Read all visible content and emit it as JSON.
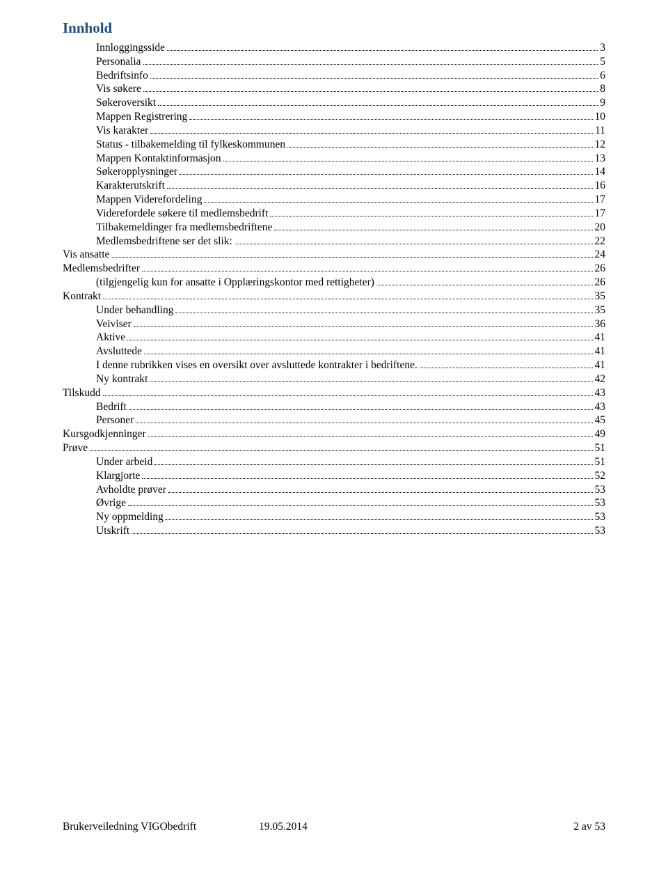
{
  "title": "Innhold",
  "title_color": "#1f4e79",
  "text_color": "#000000",
  "background_color": "#ffffff",
  "font_family": "Times New Roman",
  "toc_entries": [
    {
      "label": "Innloggingsside",
      "page": "3",
      "level": 1
    },
    {
      "label": "Personalia",
      "page": "5",
      "level": 1
    },
    {
      "label": "Bedriftsinfo",
      "page": "6",
      "level": 1
    },
    {
      "label": "Vis søkere",
      "page": "8",
      "level": 1
    },
    {
      "label": "Søkeroversikt",
      "page": "9",
      "level": 1
    },
    {
      "label": "Mappen Registrering",
      "page": "10",
      "level": 1
    },
    {
      "label": "Vis karakter",
      "page": "11",
      "level": 1
    },
    {
      "label": "Status - tilbakemelding til fylkeskommunen",
      "page": "12",
      "level": 1
    },
    {
      "label": "Mappen Kontaktinformasjon",
      "page": "13",
      "level": 1
    },
    {
      "label": "Søkeropplysninger",
      "page": "14",
      "level": 1
    },
    {
      "label": "Karakterutskrift",
      "page": "16",
      "level": 1
    },
    {
      "label": "Mappen Viderefordeling",
      "page": "17",
      "level": 1
    },
    {
      "label": "Viderefordele søkere til medlemsbedrift",
      "page": "17",
      "level": 1
    },
    {
      "label": "Tilbakemeldinger fra medlemsbedriftene",
      "page": "20",
      "level": 1
    },
    {
      "label": "Medlemsbedriftene ser det slik:",
      "page": "22",
      "level": 1
    },
    {
      "label": "Vis ansatte",
      "page": "24",
      "level": 0
    },
    {
      "label": "Medlemsbedrifter",
      "page": "26",
      "level": 0
    },
    {
      "label": "(tilgjengelig kun for ansatte i Opplæringskontor med rettigheter)",
      "page": "26",
      "level": 1
    },
    {
      "label": "Kontrakt",
      "page": "35",
      "level": 0
    },
    {
      "label": "Under behandling",
      "page": "35",
      "level": 1
    },
    {
      "label": "Veiviser",
      "page": "36",
      "level": 1
    },
    {
      "label": "Aktive",
      "page": "41",
      "level": 1
    },
    {
      "label": "Avsluttede",
      "page": "41",
      "level": 1
    },
    {
      "label": "I denne rubrikken vises en oversikt over avsluttede kontrakter i bedriftene.",
      "page": "41",
      "level": 1
    },
    {
      "label": "Ny kontrakt",
      "page": "42",
      "level": 1
    },
    {
      "label": "Tilskudd",
      "page": "43",
      "level": 0
    },
    {
      "label": "Bedrift",
      "page": "43",
      "level": 1
    },
    {
      "label": "Personer",
      "page": "45",
      "level": 1
    },
    {
      "label": "Kursgodkjenninger",
      "page": "49",
      "level": 0
    },
    {
      "label": "Prøve",
      "page": "51",
      "level": 0
    },
    {
      "label": "Under arbeid",
      "page": "51",
      "level": 1
    },
    {
      "label": "Klargjorte",
      "page": "52",
      "level": 1
    },
    {
      "label": "Avholdte prøver",
      "page": "53",
      "level": 1
    },
    {
      "label": "Øvrige",
      "page": "53",
      "level": 1
    },
    {
      "label": "Ny oppmelding",
      "page": "53",
      "level": 1
    },
    {
      "label": "Utskrift",
      "page": "53",
      "level": 1
    }
  ],
  "footer": {
    "left": "Brukerveiledning VIGObedrift",
    "center": "19.05.2014",
    "right": "2 av 53"
  }
}
